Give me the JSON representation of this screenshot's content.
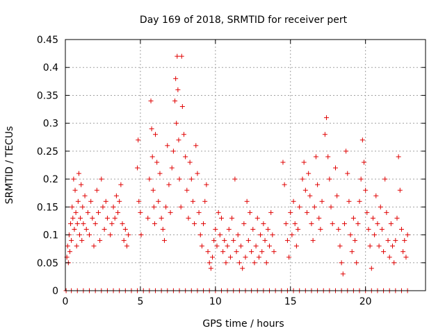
{
  "colors": {
    "series": "#e00000",
    "axis": "#000000",
    "grid": "#a0a0a0"
  },
  "chart_data": {
    "type": "scatter",
    "title": "Day 169 of 2018, SRMTID for receiver pert",
    "xlabel": "GPS time / hours",
    "ylabel": "SRMTID / TECUs",
    "xlim": [
      0,
      24
    ],
    "ylim": [
      0,
      0.45
    ],
    "grid": true,
    "x_ticks": [
      0,
      5,
      10,
      15,
      20
    ],
    "x_tick_labels": [
      "0",
      "5",
      "10",
      "15",
      "20"
    ],
    "y_ticks": [
      0,
      0.05,
      0.1,
      0.15,
      0.2,
      0.25,
      0.3,
      0.35,
      0.4,
      0.45
    ],
    "y_tick_labels": [
      "0",
      "0.05",
      "0.1",
      "0.15",
      "0.2",
      "0.25",
      "0.3",
      "0.35",
      "0.4",
      "0.45"
    ],
    "marker": "plus",
    "series": [
      {
        "name": "SRMTID",
        "points": [
          [
            0.1,
            0.06
          ],
          [
            0.15,
            0.08
          ],
          [
            0.2,
            0.05
          ],
          [
            0.25,
            0.1
          ],
          [
            0.3,
            0.07
          ],
          [
            0.35,
            0.12
          ],
          [
            0.4,
            0.09
          ],
          [
            0.45,
            0.15
          ],
          [
            0.5,
            0.13
          ],
          [
            0.55,
            0.2
          ],
          [
            0.6,
            0.11
          ],
          [
            0.65,
            0.18
          ],
          [
            0.7,
            0.14
          ],
          [
            0.75,
            0.08
          ],
          [
            0.8,
            0.12
          ],
          [
            0.85,
            0.16
          ],
          [
            0.9,
            0.21
          ],
          [
            0.95,
            0.1
          ],
          [
            1.0,
            0.13
          ],
          [
            1.05,
            0.19
          ],
          [
            1.1,
            0.09
          ],
          [
            1.15,
            0.15
          ],
          [
            1.2,
            0.12
          ],
          [
            1.3,
            0.17
          ],
          [
            1.4,
            0.11
          ],
          [
            1.5,
            0.14
          ],
          [
            1.6,
            0.1
          ],
          [
            1.7,
            0.16
          ],
          [
            1.8,
            0.13
          ],
          [
            1.9,
            0.08
          ],
          [
            2.0,
            0.12
          ],
          [
            2.1,
            0.18
          ],
          [
            2.2,
            0.14
          ],
          [
            2.3,
            0.09
          ],
          [
            2.4,
            0.2
          ],
          [
            2.5,
            0.15
          ],
          [
            2.6,
            0.11
          ],
          [
            2.7,
            0.16
          ],
          [
            2.8,
            0.13
          ],
          [
            3.0,
            0.1
          ],
          [
            3.1,
            0.12
          ],
          [
            3.2,
            0.15
          ],
          [
            3.3,
            0.13
          ],
          [
            3.4,
            0.17
          ],
          [
            3.5,
            0.14
          ],
          [
            3.6,
            0.16
          ],
          [
            3.7,
            0.19
          ],
          [
            3.8,
            0.12
          ],
          [
            3.9,
            0.09
          ],
          [
            4.0,
            0.11
          ],
          [
            4.1,
            0.08
          ],
          [
            4.2,
            0.1
          ],
          [
            4.8,
            0.22
          ],
          [
            4.85,
            0.27
          ],
          [
            4.9,
            0.16
          ],
          [
            5.0,
            0.14
          ],
          [
            5.05,
            0.1
          ],
          [
            5.5,
            0.13
          ],
          [
            5.6,
            0.2
          ],
          [
            5.7,
            0.34
          ],
          [
            5.75,
            0.29
          ],
          [
            5.8,
            0.24
          ],
          [
            5.85,
            0.18
          ],
          [
            5.9,
            0.15
          ],
          [
            5.95,
            0.12
          ],
          [
            6.0,
            0.28
          ],
          [
            6.1,
            0.23
          ],
          [
            6.2,
            0.16
          ],
          [
            6.3,
            0.21
          ],
          [
            6.4,
            0.13
          ],
          [
            6.5,
            0.11
          ],
          [
            6.6,
            0.09
          ],
          [
            6.7,
            0.15
          ],
          [
            6.8,
            0.26
          ],
          [
            6.9,
            0.19
          ],
          [
            7.0,
            0.14
          ],
          [
            7.1,
            0.22
          ],
          [
            7.2,
            0.25
          ],
          [
            7.3,
            0.34
          ],
          [
            7.35,
            0.38
          ],
          [
            7.4,
            0.3
          ],
          [
            7.45,
            0.42
          ],
          [
            7.5,
            0.36
          ],
          [
            7.55,
            0.27
          ],
          [
            7.6,
            0.2
          ],
          [
            7.7,
            0.15
          ],
          [
            7.75,
            0.42
          ],
          [
            7.8,
            0.33
          ],
          [
            7.9,
            0.28
          ],
          [
            8.0,
            0.24
          ],
          [
            8.1,
            0.18
          ],
          [
            8.2,
            0.13
          ],
          [
            8.3,
            0.23
          ],
          [
            8.4,
            0.2
          ],
          [
            8.5,
            0.16
          ],
          [
            8.6,
            0.12
          ],
          [
            8.7,
            0.26
          ],
          [
            8.8,
            0.21
          ],
          [
            8.9,
            0.14
          ],
          [
            9.0,
            0.1
          ],
          [
            9.1,
            0.08
          ],
          [
            9.2,
            0.12
          ],
          [
            9.3,
            0.16
          ],
          [
            9.4,
            0.19
          ],
          [
            9.5,
            0.07
          ],
          [
            9.6,
            0.05
          ],
          [
            9.7,
            0.04
          ],
          [
            9.8,
            0.06
          ],
          [
            9.9,
            0.09
          ],
          [
            10.0,
            0.11
          ],
          [
            10.1,
            0.08
          ],
          [
            10.2,
            0.14
          ],
          [
            10.3,
            0.1
          ],
          [
            10.4,
            0.13
          ],
          [
            10.5,
            0.07
          ],
          [
            10.6,
            0.09
          ],
          [
            10.7,
            0.05
          ],
          [
            10.8,
            0.08
          ],
          [
            10.9,
            0.11
          ],
          [
            11.0,
            0.06
          ],
          [
            11.1,
            0.13
          ],
          [
            11.2,
            0.09
          ],
          [
            11.3,
            0.2
          ],
          [
            11.4,
            0.07
          ],
          [
            11.5,
            0.1
          ],
          [
            11.6,
            0.05
          ],
          [
            11.7,
            0.08
          ],
          [
            11.8,
            0.04
          ],
          [
            11.9,
            0.12
          ],
          [
            12.0,
            0.06
          ],
          [
            12.1,
            0.16
          ],
          [
            12.2,
            0.09
          ],
          [
            12.3,
            0.14
          ],
          [
            12.4,
            0.07
          ],
          [
            12.5,
            0.11
          ],
          [
            12.6,
            0.05
          ],
          [
            12.7,
            0.08
          ],
          [
            12.8,
            0.13
          ],
          [
            12.9,
            0.06
          ],
          [
            13.0,
            0.1
          ],
          [
            13.1,
            0.07
          ],
          [
            13.2,
            0.12
          ],
          [
            13.3,
            0.09
          ],
          [
            13.4,
            0.05
          ],
          [
            13.5,
            0.11
          ],
          [
            13.6,
            0.08
          ],
          [
            13.7,
            0.14
          ],
          [
            13.8,
            0.1
          ],
          [
            13.9,
            0.07
          ],
          [
            14.5,
            0.23
          ],
          [
            14.6,
            0.19
          ],
          [
            14.7,
            0.12
          ],
          [
            14.8,
            0.09
          ],
          [
            14.9,
            0.06
          ],
          [
            15.0,
            0.14
          ],
          [
            15.1,
            0.1
          ],
          [
            15.2,
            0.16
          ],
          [
            15.3,
            0.12
          ],
          [
            15.4,
            0.08
          ],
          [
            15.5,
            0.11
          ],
          [
            15.6,
            0.15
          ],
          [
            15.8,
            0.2
          ],
          [
            15.9,
            0.23
          ],
          [
            16.0,
            0.18
          ],
          [
            16.1,
            0.14
          ],
          [
            16.2,
            0.21
          ],
          [
            16.3,
            0.17
          ],
          [
            16.4,
            0.12
          ],
          [
            16.5,
            0.09
          ],
          [
            16.6,
            0.15
          ],
          [
            16.7,
            0.24
          ],
          [
            16.8,
            0.19
          ],
          [
            16.9,
            0.13
          ],
          [
            17.0,
            0.11
          ],
          [
            17.1,
            0.16
          ],
          [
            17.3,
            0.28
          ],
          [
            17.4,
            0.31
          ],
          [
            17.5,
            0.24
          ],
          [
            17.6,
            0.2
          ],
          [
            17.7,
            0.15
          ],
          [
            17.8,
            0.12
          ],
          [
            18.0,
            0.22
          ],
          [
            18.1,
            0.17
          ],
          [
            18.2,
            0.11
          ],
          [
            18.3,
            0.08
          ],
          [
            18.4,
            0.05
          ],
          [
            18.5,
            0.03
          ],
          [
            18.6,
            0.12
          ],
          [
            18.7,
            0.25
          ],
          [
            18.8,
            0.21
          ],
          [
            18.9,
            0.16
          ],
          [
            19.0,
            0.1
          ],
          [
            19.1,
            0.07
          ],
          [
            19.2,
            0.13
          ],
          [
            19.3,
            0.09
          ],
          [
            19.4,
            0.05
          ],
          [
            19.5,
            0.12
          ],
          [
            19.6,
            0.16
          ],
          [
            19.7,
            0.2
          ],
          [
            19.8,
            0.27
          ],
          [
            19.9,
            0.23
          ],
          [
            20.0,
            0.18
          ],
          [
            20.1,
            0.14
          ],
          [
            20.2,
            0.11
          ],
          [
            20.3,
            0.08
          ],
          [
            20.4,
            0.04
          ],
          [
            20.5,
            0.13
          ],
          [
            20.6,
            0.1
          ],
          [
            20.7,
            0.17
          ],
          [
            20.8,
            0.12
          ],
          [
            20.9,
            0.08
          ],
          [
            21.0,
            0.15
          ],
          [
            21.1,
            0.11
          ],
          [
            21.2,
            0.07
          ],
          [
            21.3,
            0.2
          ],
          [
            21.4,
            0.14
          ],
          [
            21.5,
            0.09
          ],
          [
            21.6,
            0.06
          ],
          [
            21.7,
            0.12
          ],
          [
            21.8,
            0.08
          ],
          [
            21.9,
            0.05
          ],
          [
            22.0,
            0.09
          ],
          [
            22.1,
            0.13
          ],
          [
            22.2,
            0.24
          ],
          [
            22.3,
            0.18
          ],
          [
            22.4,
            0.11
          ],
          [
            22.5,
            0.07
          ],
          [
            22.6,
            0.09
          ],
          [
            22.7,
            0.06
          ],
          [
            22.8,
            0.1
          ]
        ],
        "zero_level_times": [
          0.05,
          0.4,
          0.8,
          1.2,
          1.6,
          2.0,
          2.4,
          2.8,
          3.2,
          3.6,
          4.0,
          4.4,
          4.8,
          5.2,
          5.6,
          6.0,
          6.4,
          6.8,
          7.2,
          7.6,
          8.0,
          8.4,
          8.8,
          9.2,
          9.6,
          10.0,
          10.4,
          10.8,
          11.2,
          11.6,
          12.0,
          12.4,
          12.8,
          13.2,
          13.6,
          14.0,
          14.4,
          14.8,
          15.2,
          15.6,
          16.0,
          16.4,
          16.8,
          17.2,
          17.6,
          18.0,
          18.4,
          18.8,
          19.2,
          19.6,
          20.0,
          20.4,
          20.8,
          21.2,
          21.6,
          22.0,
          22.4,
          22.8
        ]
      }
    ]
  }
}
